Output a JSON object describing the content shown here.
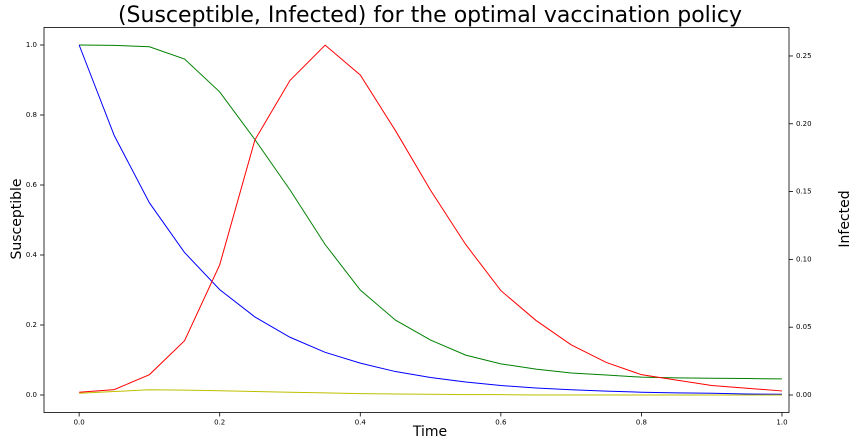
{
  "chart_data": {
    "type": "line",
    "title": "(Susceptible, Infected) for the optimal vaccination policy",
    "xlabel": "Time",
    "ylabel": "Susceptible",
    "y2label": "Infected",
    "ylabel_color": "#008000",
    "y2label_color": "#ff0000",
    "x": [
      0,
      0.05,
      0.1,
      0.15,
      0.2,
      0.25,
      0.3,
      0.35,
      0.4,
      0.45,
      0.5,
      0.55,
      0.6,
      0.65,
      0.7,
      0.75,
      0.8,
      0.85,
      0.9,
      0.95,
      1.0
    ],
    "series": [
      {
        "color": "#008000",
        "values": [
          1.0,
          0.999,
          0.995,
          0.96,
          0.866,
          0.73,
          0.586,
          0.43,
          0.3,
          0.214,
          0.157,
          0.114,
          0.089,
          0.074,
          0.063,
          0.057,
          0.051,
          0.049,
          0.048,
          0.047,
          0.046
        ]
      },
      {
        "color": "#0000ff",
        "values": [
          1.0,
          0.741,
          0.549,
          0.407,
          0.301,
          0.223,
          0.165,
          0.122,
          0.091,
          0.067,
          0.05,
          0.037,
          0.027,
          0.02,
          0.015,
          0.011,
          0.008,
          0.006,
          0.005,
          0.003,
          0.002
        ]
      },
      {
        "color": "#bfbf00",
        "values": [
          0.005,
          0.01,
          0.015,
          0.014,
          0.012,
          0.01,
          0.008,
          0.006,
          0.004,
          0.003,
          0.002,
          0.001,
          0.001,
          0,
          0,
          0,
          0,
          0,
          0,
          0,
          0
        ]
      },
      {
        "color": "#ff0000",
        "axis": "y2",
        "values": [
          0.002,
          0.004,
          0.015,
          0.04,
          0.096,
          0.188,
          0.232,
          0.258,
          0.236,
          0.195,
          0.151,
          0.111,
          0.077,
          0.055,
          0.037,
          0.024,
          0.015,
          0.011,
          0.007,
          0.005,
          0.003
        ]
      }
    ],
    "xlim": [
      -0.05,
      1.01
    ],
    "xticks": [
      {
        "value": 0,
        "label": "0.0"
      },
      {
        "value": 0.2,
        "label": "0.2"
      },
      {
        "value": 0.4,
        "label": "0.4"
      },
      {
        "value": 0.6,
        "label": "0.6"
      },
      {
        "value": 0.8,
        "label": "0.8"
      },
      {
        "value": 1,
        "label": "1.0"
      }
    ],
    "ylim": [
      -0.05,
      1.05
    ],
    "yticks": [
      {
        "value": 0,
        "label": "0.0"
      },
      {
        "value": 0.2,
        "label": "0.2"
      },
      {
        "value": 0.4,
        "label": "0.4"
      },
      {
        "value": 0.6,
        "label": "0.6"
      },
      {
        "value": 0.8,
        "label": "0.8"
      },
      {
        "value": 1,
        "label": "1.0"
      }
    ],
    "y2lim": [
      -0.0129,
      0.271
    ],
    "y2ticks": [
      {
        "value": 0,
        "label": "0.00"
      },
      {
        "value": 0.05,
        "label": "0.05"
      },
      {
        "value": 0.1,
        "label": "0.10"
      },
      {
        "value": 0.15,
        "label": "0.15"
      },
      {
        "value": 0.2,
        "label": "0.20"
      },
      {
        "value": 0.25,
        "label": "0.25"
      }
    ]
  }
}
